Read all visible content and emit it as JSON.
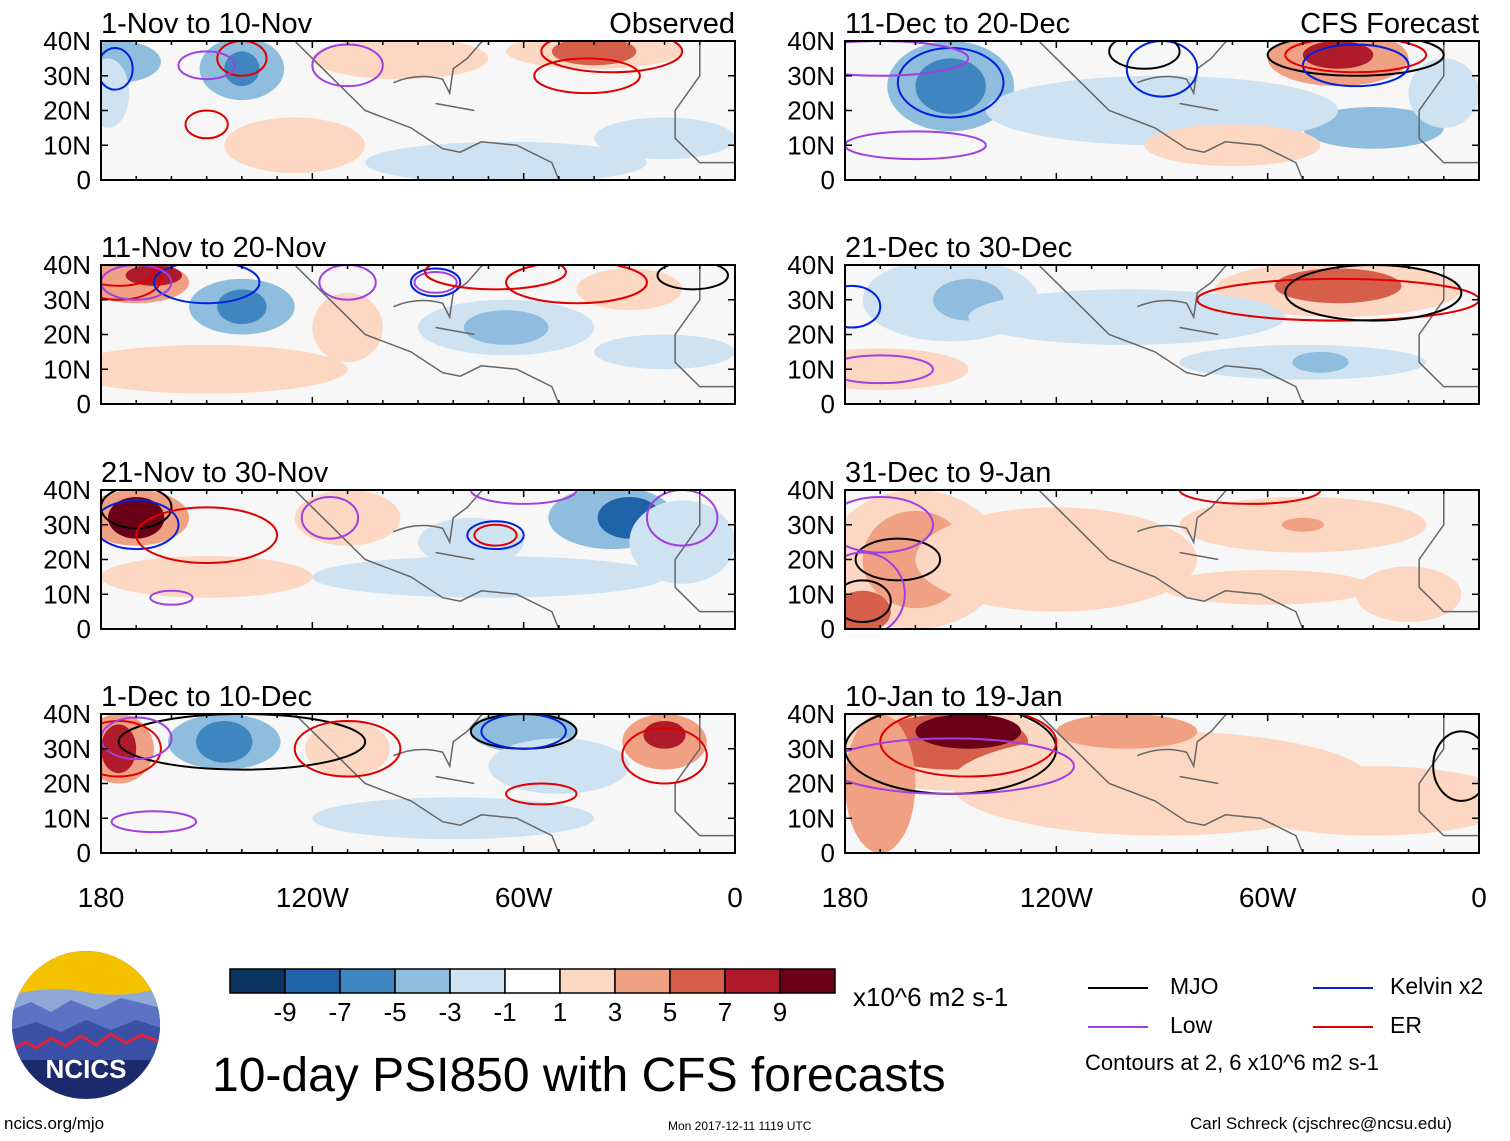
{
  "figure": {
    "title": "10-day PSI850 with CFS forecasts",
    "site": "ncics.org/mjo",
    "timestamp": "Mon 2017-12-11 1119 UTC",
    "author": "Carl Schreck (cjschrec@ncsu.edu)",
    "logo_text": "NCICS"
  },
  "panels": [
    {
      "id": "p1",
      "title": "1-Nov to 10-Nov",
      "tag": "Observed"
    },
    {
      "id": "p2",
      "title": "11-Nov to 20-Nov",
      "tag": ""
    },
    {
      "id": "p3",
      "title": "21-Nov to 30-Nov",
      "tag": ""
    },
    {
      "id": "p4",
      "title": "1-Dec to 10-Dec",
      "tag": ""
    },
    {
      "id": "p5",
      "title": "11-Dec to 20-Dec",
      "tag": "CFS Forecast"
    },
    {
      "id": "p6",
      "title": "21-Dec to 30-Dec",
      "tag": ""
    },
    {
      "id": "p7",
      "title": "31-Dec to 9-Jan",
      "tag": ""
    },
    {
      "id": "p8",
      "title": "10-Jan to 19-Jan",
      "tag": ""
    }
  ],
  "axes": {
    "lat_labels": [
      "40N",
      "30N",
      "20N",
      "10N",
      "0"
    ],
    "lon_labels": [
      "180",
      "120W",
      "60W",
      "0"
    ]
  },
  "colorbar": {
    "unit": "x10^6 m2 s-1",
    "tick_labels": [
      "-9",
      "-7",
      "-5",
      "-3",
      "-1",
      "1",
      "3",
      "5",
      "7",
      "9"
    ],
    "colors": [
      "#0b3560",
      "#1f62a8",
      "#3f86c0",
      "#8ebdde",
      "#cfe2f1",
      "#ffffff",
      "#fcd7c2",
      "#f0a083",
      "#d65f4b",
      "#b01b2b",
      "#6b0019"
    ]
  },
  "legend": {
    "items": [
      {
        "label": "MJO",
        "color": "#000000"
      },
      {
        "label": "Kelvin x2",
        "color": "#0022dd"
      },
      {
        "label": "Low",
        "color": "#a040e0"
      },
      {
        "label": "ER",
        "color": "#e00000"
      }
    ],
    "note": "Contours at 2, 6 x10^6 m2 s-1"
  },
  "chart_data": {
    "type": "map",
    "variable": "PSI850 anomaly (10-day means)",
    "units": "x10^6 m2 s-1",
    "lon_range": [
      -180,
      0
    ],
    "lat_range": [
      0,
      40
    ],
    "panels": [
      {
        "period": "1-Nov to 10-Nov",
        "source": "Observed"
      },
      {
        "period": "11-Nov to 20-Nov",
        "source": "Observed"
      },
      {
        "period": "21-Nov to 30-Nov",
        "source": "Observed"
      },
      {
        "period": "1-Dec to 10-Dec",
        "source": "Observed"
      },
      {
        "period": "11-Dec to 20-Dec",
        "source": "CFS Forecast"
      },
      {
        "period": "21-Dec to 30-Dec",
        "source": "CFS Forecast"
      },
      {
        "period": "31-Dec to 9-Jan",
        "source": "CFS Forecast"
      },
      {
        "period": "10-Jan to 19-Jan",
        "source": "CFS Forecast"
      }
    ],
    "contour_levels": [
      2,
      6
    ],
    "color_levels": [
      -9,
      -7,
      -5,
      -3,
      -1,
      1,
      3,
      5,
      7,
      9
    ]
  }
}
